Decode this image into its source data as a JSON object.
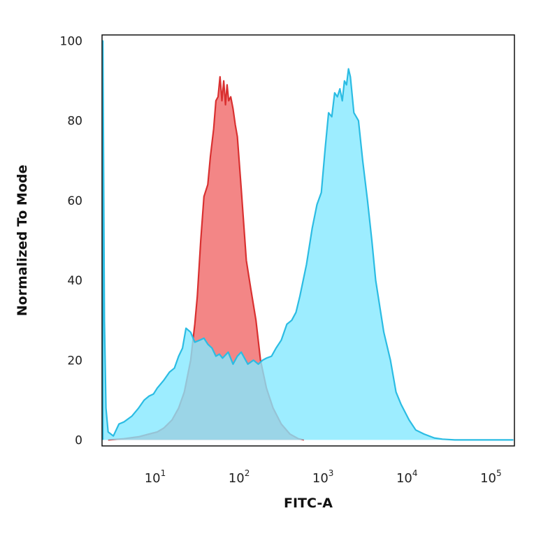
{
  "chart_data": {
    "type": "area",
    "xlabel": "FITC-A",
    "ylabel": "Normalized To Mode",
    "x_scale": "log",
    "xlim": [
      2.2,
      180000
    ],
    "ylim": [
      -1.5,
      101.5
    ],
    "grid": false,
    "legend": "none",
    "x_ticks": [
      {
        "base": "10",
        "exp": "1",
        "value": 10
      },
      {
        "base": "10",
        "exp": "2",
        "value": 100
      },
      {
        "base": "10",
        "exp": "3",
        "value": 1000
      },
      {
        "base": "10",
        "exp": "4",
        "value": 10000
      },
      {
        "base": "10",
        "exp": "5",
        "value": 100000
      }
    ],
    "y_ticks": [
      {
        "label": "0",
        "value": 0
      },
      {
        "label": "20",
        "value": 20
      },
      {
        "label": "40",
        "value": 40
      },
      {
        "label": "60",
        "value": 60
      },
      {
        "label": "80",
        "value": 80
      },
      {
        "label": "100",
        "value": 100
      }
    ],
    "series": [
      {
        "fill": "#f28080",
        "stroke": "#d93030",
        "x": [
          2.6,
          4,
          6,
          8,
          10,
          12,
          15,
          18,
          21,
          25,
          28,
          30,
          33,
          36,
          40,
          43,
          47,
          50,
          53,
          56,
          59,
          62,
          65,
          68,
          71,
          75,
          80,
          85,
          90,
          100,
          115,
          130,
          150,
          170,
          200,
          240,
          300,
          380,
          480,
          560
        ],
        "y": [
          0,
          0.3,
          0.8,
          1.5,
          2.0,
          3.0,
          5.0,
          8.0,
          12.0,
          20.0,
          29.0,
          36.0,
          50.0,
          61.0,
          64.0,
          71.0,
          78.0,
          85.0,
          86.0,
          91.0,
          85.0,
          90.0,
          84.0,
          89.0,
          85.0,
          86.0,
          83.0,
          79.0,
          76.0,
          63.0,
          45.0,
          38.0,
          30.0,
          20.0,
          13.0,
          8.0,
          4.0,
          1.5,
          0.3,
          0
        ]
      },
      {
        "fill": "#85e8ff",
        "stroke": "#2bbce3",
        "x": [
          2.25,
          2.25,
          2.35,
          2.45,
          2.6,
          3,
          3.5,
          4,
          5,
          6,
          7,
          8,
          9,
          10,
          12,
          14,
          16,
          18,
          20,
          22,
          25,
          28,
          32,
          36,
          40,
          45,
          50,
          55,
          60,
          70,
          80,
          90,
          100,
          120,
          140,
          160,
          180,
          200,
          230,
          260,
          300,
          350,
          400,
          450,
          500,
          600,
          700,
          800,
          900,
          1000,
          1100,
          1200,
          1300,
          1400,
          1500,
          1600,
          1700,
          1800,
          1900,
          2000,
          2200,
          2500,
          2800,
          3200,
          3600,
          4000,
          5000,
          6000,
          7000,
          8000,
          10000,
          12000,
          15000,
          20000,
          25000,
          35000,
          50000,
          80000,
          120000,
          175000
        ],
        "y": [
          0,
          100,
          30,
          8,
          2,
          1,
          4,
          4.5,
          6,
          8,
          10,
          11,
          11.5,
          13,
          15,
          17,
          18,
          21,
          23,
          28,
          27,
          24.5,
          25,
          25.5,
          24,
          23,
          21,
          21.5,
          20.5,
          22,
          19,
          21,
          22,
          19,
          20,
          19,
          20,
          20.5,
          21,
          23,
          25,
          29,
          30,
          32,
          36,
          44,
          53,
          59,
          62,
          73,
          82,
          81,
          87,
          86,
          88,
          85,
          90,
          89,
          93,
          91,
          82,
          80,
          70,
          60,
          50,
          40,
          27,
          20,
          12,
          9,
          5,
          2.5,
          1.5,
          0.5,
          0.2,
          0,
          0,
          0,
          0,
          0
        ]
      }
    ]
  }
}
